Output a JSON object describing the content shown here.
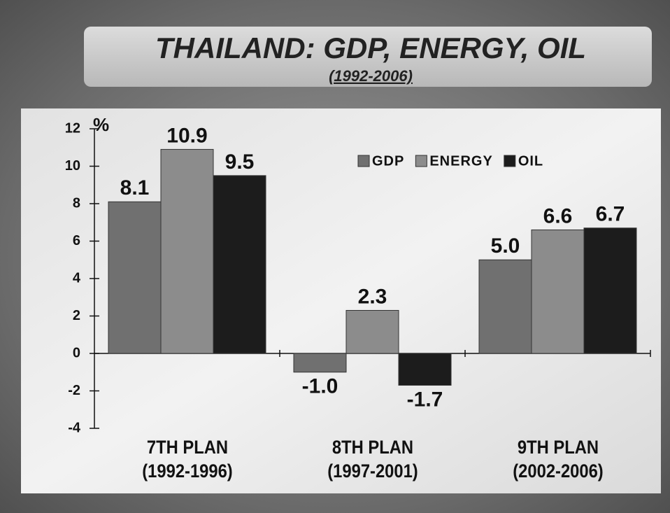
{
  "chart_data": {
    "type": "bar",
    "title": "THAILAND: GDP, ENERGY, OIL",
    "subtitle": "(1992-2006)",
    "y_label": "%",
    "categories": [
      "7TH PLAN\n(1992-1996)",
      "8TH PLAN\n(1997-2001)",
      "9TH PLAN\n(2002-2006)"
    ],
    "series": [
      {
        "name": "GDP",
        "color": "#707070",
        "values": [
          8.1,
          -1.0,
          5.0
        ],
        "value_labels": [
          "8.1",
          "-1.0",
          "5.0"
        ]
      },
      {
        "name": "ENERGY",
        "color": "#8c8c8c",
        "values": [
          10.9,
          2.3,
          6.6
        ],
        "value_labels": [
          "10.9",
          "2.3",
          "6.6"
        ]
      },
      {
        "name": "OIL",
        "color": "#1c1c1c",
        "values": [
          9.5,
          -1.7,
          6.7
        ],
        "value_labels": [
          "9.5",
          "-1.7",
          "6.7"
        ]
      }
    ],
    "ylim": [
      -4,
      12
    ],
    "yticks": [
      -4,
      -2,
      0,
      2,
      4,
      6,
      8,
      10,
      12
    ],
    "legend": "top-right"
  }
}
